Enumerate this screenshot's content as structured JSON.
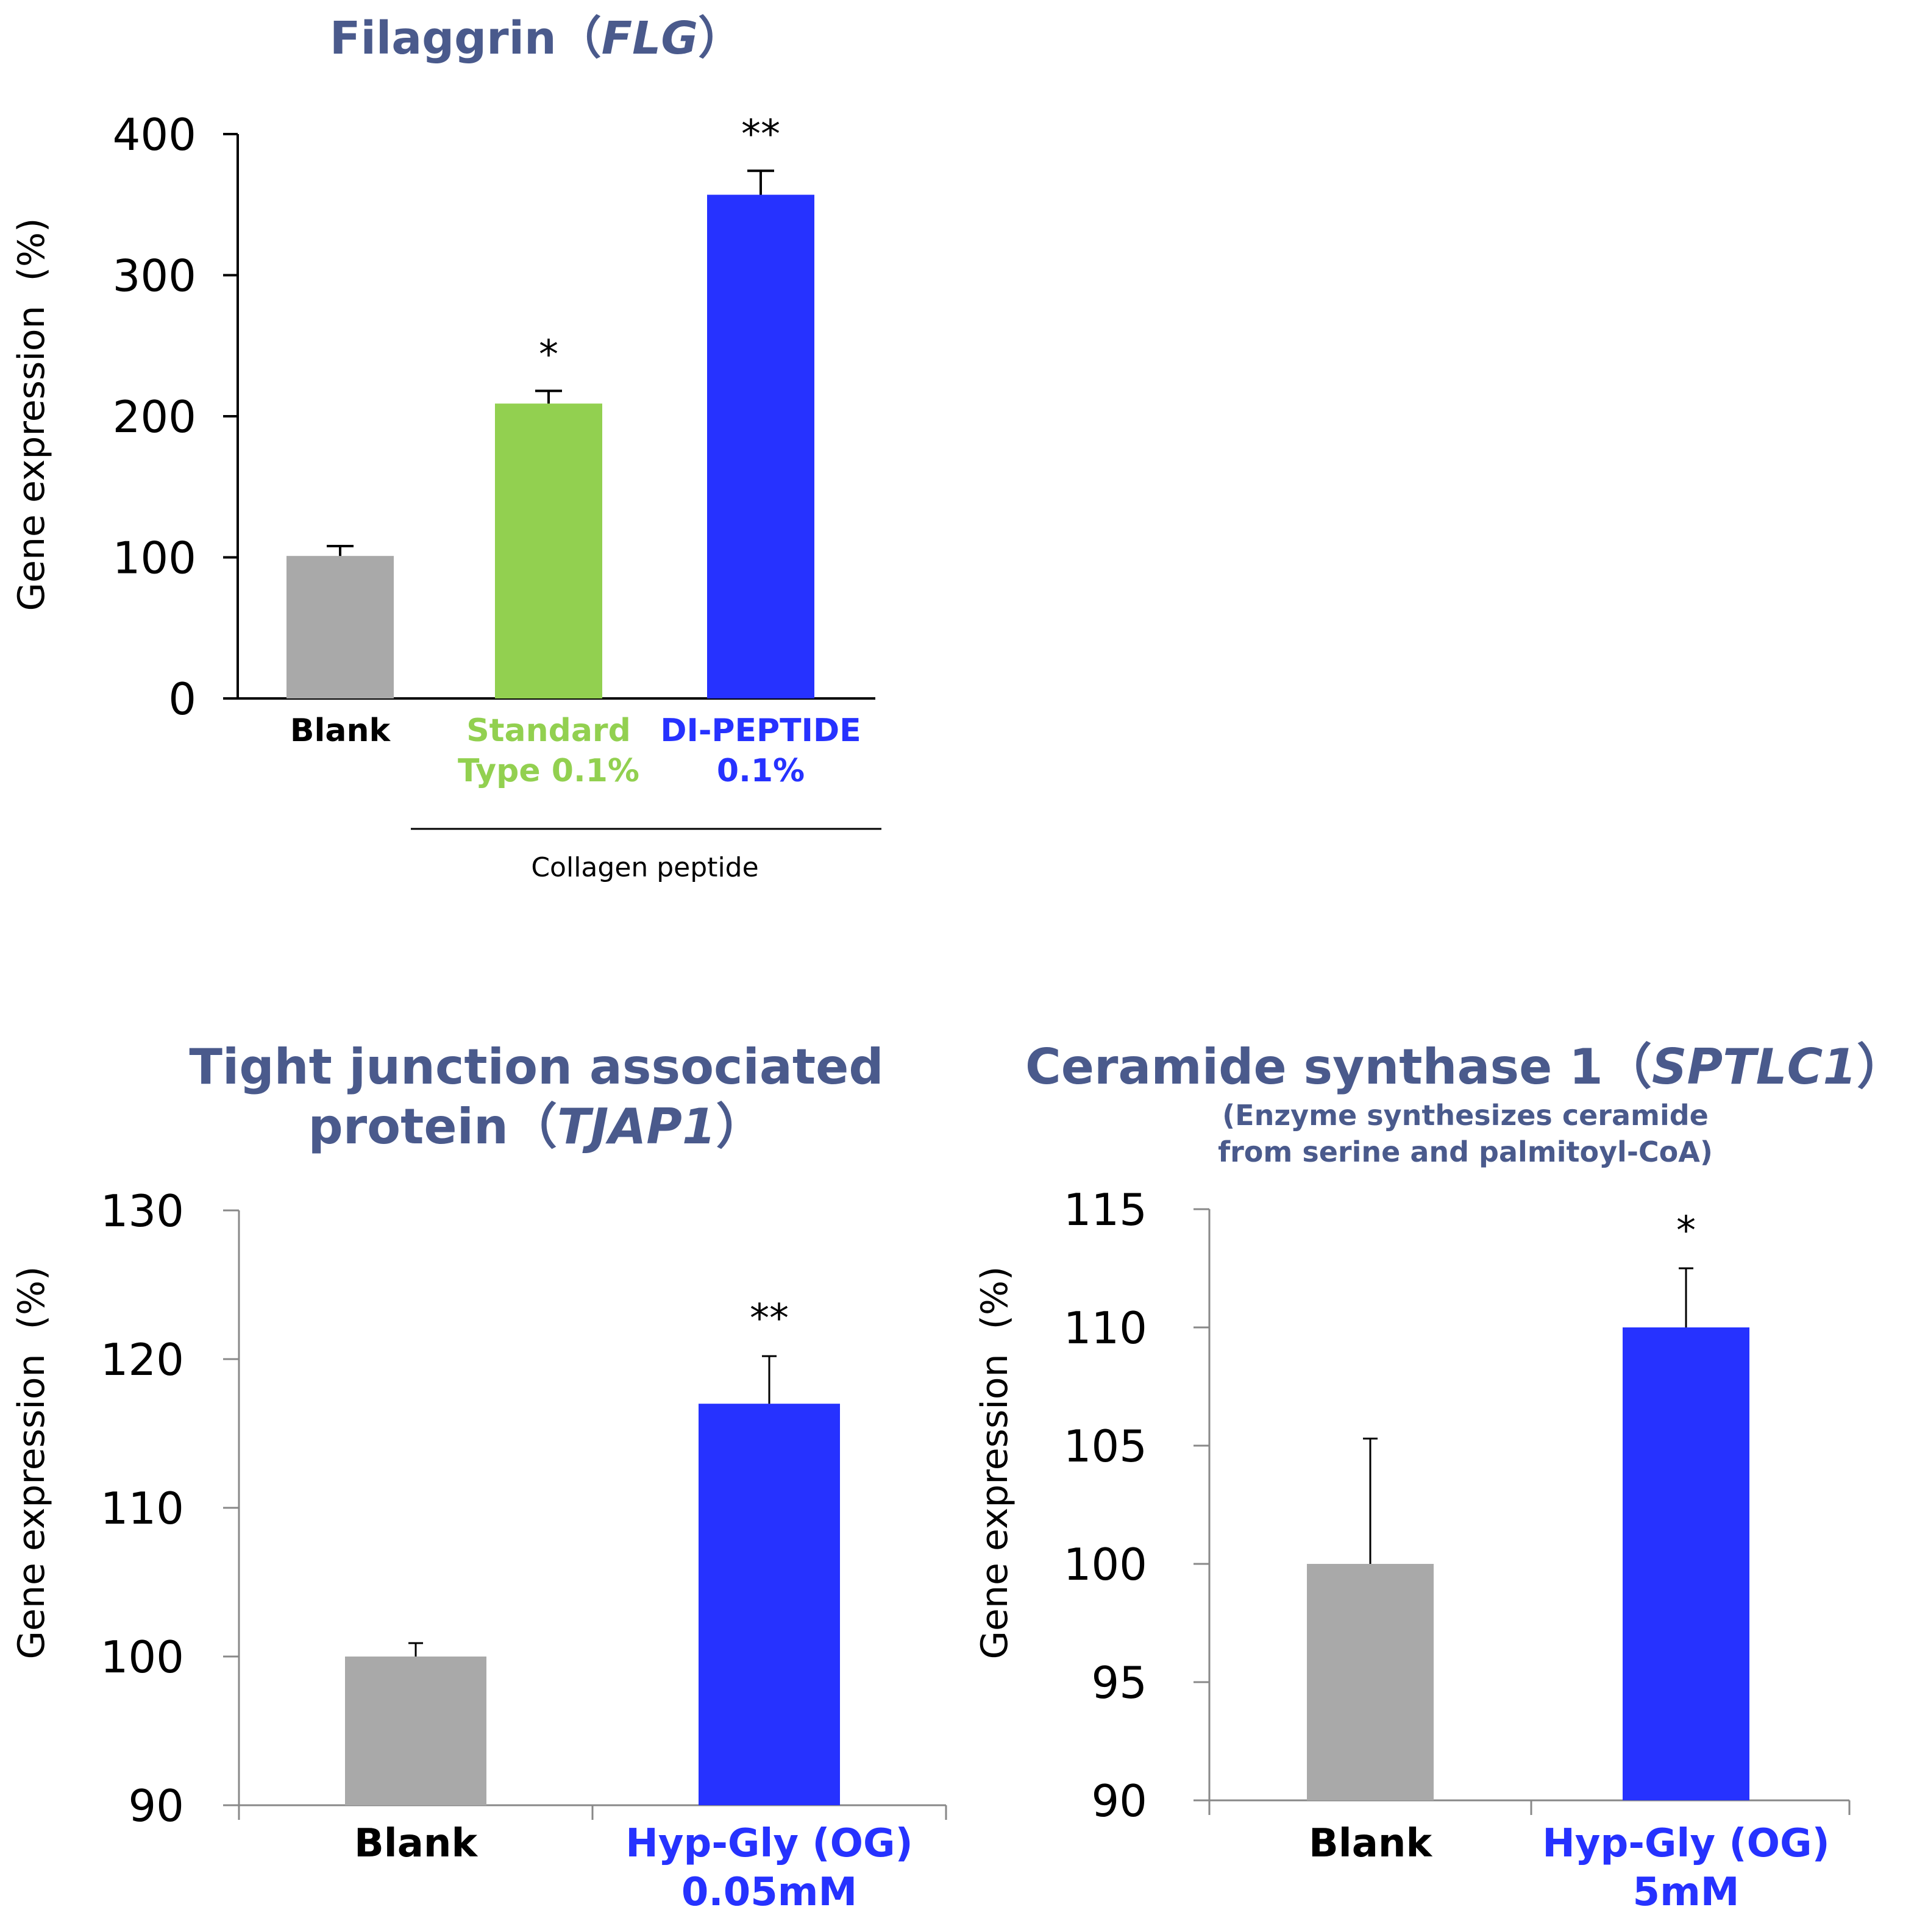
{
  "colors": {
    "title": "#4a5a8c",
    "blank": "#a9a9a9",
    "standard": "#92d050",
    "peptide": "#2632ff",
    "label_black": "#000000"
  },
  "chart_data": [
    {
      "type": "bar",
      "title": "Filaggrin",
      "title_italic": "FLG",
      "ylabel": "Gene expression",
      "yunit": "(%)",
      "ylim": [
        0,
        400
      ],
      "yticks": [
        "0",
        "100",
        "200",
        "300",
        "400"
      ],
      "categories": [
        {
          "lines": [
            "Blank"
          ],
          "color": "#000000"
        },
        {
          "lines": [
            "Standard",
            "Type 0.1%"
          ],
          "color": "#92d050"
        },
        {
          "lines": [
            "DI-PEPTIDE",
            "0.1%"
          ],
          "color": "#2632ff"
        }
      ],
      "values": [
        101,
        209,
        357
      ],
      "errors": [
        7,
        9,
        17
      ],
      "bar_colors": [
        "#a9a9a9",
        "#92d050",
        "#2632ff"
      ],
      "significance": [
        "",
        "*",
        "**"
      ],
      "group_label": "Collagen peptide"
    },
    {
      "type": "bar",
      "title_lines": [
        "Tight junction associated",
        "protein"
      ],
      "title_italic": "TJAP1",
      "ylabel": "Gene expression",
      "yunit": "(%)",
      "ylim": [
        90,
        130
      ],
      "yticks": [
        "90",
        "100",
        "110",
        "120",
        "130"
      ],
      "categories": [
        {
          "lines": [
            "Blank"
          ],
          "color": "#000000"
        },
        {
          "lines": [
            "Hyp-Gly (OG)",
            "0.05mM"
          ],
          "color": "#2632ff"
        }
      ],
      "values": [
        100,
        117
      ],
      "errors": [
        0.9,
        3.2
      ],
      "bar_colors": [
        "#a9a9a9",
        "#2632ff"
      ],
      "significance": [
        "",
        "**"
      ]
    },
    {
      "type": "bar",
      "title": "Ceramide synthase 1",
      "title_italic": "SPTLC1",
      "subtitle_lines": [
        "(Enzyme synthesizes ceramide",
        "from serine and palmitoyl-CoA)"
      ],
      "ylabel": "Gene expression",
      "yunit": "(%)",
      "ylim": [
        90,
        115
      ],
      "yticks": [
        "90",
        "95",
        "100",
        "105",
        "110",
        "115"
      ],
      "categories": [
        {
          "lines": [
            "Blank"
          ],
          "color": "#000000"
        },
        {
          "lines": [
            "Hyp-Gly (OG)",
            "5mM"
          ],
          "color": "#2632ff"
        }
      ],
      "values": [
        100,
        110
      ],
      "errors": [
        5.3,
        2.5
      ],
      "bar_colors": [
        "#a9a9a9",
        "#2632ff"
      ],
      "significance": [
        "",
        "*"
      ]
    }
  ]
}
